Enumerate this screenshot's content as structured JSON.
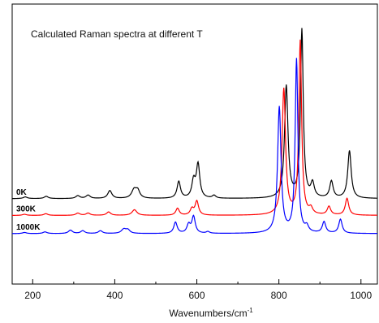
{
  "chart_data": {
    "type": "line",
    "title": "Calculated Raman spectra at different T",
    "xlabel": "Wavenumbers/cm",
    "xlabel_superscript": "-1",
    "ylabel": "",
    "xlim": [
      150,
      1040
    ],
    "ylim": [
      0,
      1
    ],
    "grid": false,
    "legend": "none",
    "x_ticks": [
      200,
      400,
      600,
      800,
      1000
    ],
    "series": [
      {
        "name": "0K",
        "color": "#000000",
        "baseline": 0.305,
        "peaks": [
          {
            "x": 182,
            "h": 0.006,
            "w": 6
          },
          {
            "x": 233,
            "h": 0.008,
            "w": 6
          },
          {
            "x": 310,
            "h": 0.01,
            "w": 6
          },
          {
            "x": 335,
            "h": 0.012,
            "w": 6
          },
          {
            "x": 388,
            "h": 0.028,
            "w": 6
          },
          {
            "x": 447,
            "h": 0.03,
            "w": 7
          },
          {
            "x": 456,
            "h": 0.026,
            "w": 6
          },
          {
            "x": 556,
            "h": 0.06,
            "w": 5
          },
          {
            "x": 592,
            "h": 0.06,
            "w": 5
          },
          {
            "x": 603,
            "h": 0.12,
            "w": 5
          },
          {
            "x": 642,
            "h": 0.01,
            "w": 5
          },
          {
            "x": 818,
            "h": 0.4,
            "w": 5
          },
          {
            "x": 856,
            "h": 0.6,
            "w": 4
          },
          {
            "x": 882,
            "h": 0.05,
            "w": 5
          },
          {
            "x": 928,
            "h": 0.06,
            "w": 5
          },
          {
            "x": 972,
            "h": 0.17,
            "w": 5
          }
        ]
      },
      {
        "name": "300K",
        "color": "#ff0000",
        "baseline": 0.245,
        "peaks": [
          {
            "x": 180,
            "h": 0.004,
            "w": 6
          },
          {
            "x": 232,
            "h": 0.006,
            "w": 6
          },
          {
            "x": 310,
            "h": 0.008,
            "w": 6
          },
          {
            "x": 335,
            "h": 0.008,
            "w": 6
          },
          {
            "x": 385,
            "h": 0.012,
            "w": 6
          },
          {
            "x": 448,
            "h": 0.02,
            "w": 7
          },
          {
            "x": 553,
            "h": 0.025,
            "w": 5
          },
          {
            "x": 588,
            "h": 0.022,
            "w": 5
          },
          {
            "x": 600,
            "h": 0.05,
            "w": 5
          },
          {
            "x": 812,
            "h": 0.45,
            "w": 5
          },
          {
            "x": 852,
            "h": 0.62,
            "w": 4
          },
          {
            "x": 878,
            "h": 0.02,
            "w": 5
          },
          {
            "x": 922,
            "h": 0.03,
            "w": 5
          },
          {
            "x": 966,
            "h": 0.06,
            "w": 5
          }
        ]
      },
      {
        "name": "1000K",
        "color": "#0000ff",
        "baseline": 0.18,
        "peaks": [
          {
            "x": 180,
            "h": 0.004,
            "w": 6
          },
          {
            "x": 230,
            "h": 0.006,
            "w": 6
          },
          {
            "x": 292,
            "h": 0.012,
            "w": 6
          },
          {
            "x": 322,
            "h": 0.01,
            "w": 6
          },
          {
            "x": 365,
            "h": 0.01,
            "w": 6
          },
          {
            "x": 422,
            "h": 0.015,
            "w": 7
          },
          {
            "x": 432,
            "h": 0.012,
            "w": 6
          },
          {
            "x": 548,
            "h": 0.04,
            "w": 5
          },
          {
            "x": 580,
            "h": 0.03,
            "w": 5
          },
          {
            "x": 592,
            "h": 0.06,
            "w": 5
          },
          {
            "x": 627,
            "h": 0.006,
            "w": 5
          },
          {
            "x": 801,
            "h": 0.45,
            "w": 5
          },
          {
            "x": 843,
            "h": 0.62,
            "w": 4
          },
          {
            "x": 868,
            "h": 0.02,
            "w": 5
          },
          {
            "x": 910,
            "h": 0.04,
            "w": 5
          },
          {
            "x": 950,
            "h": 0.05,
            "w": 5
          }
        ]
      }
    ]
  }
}
